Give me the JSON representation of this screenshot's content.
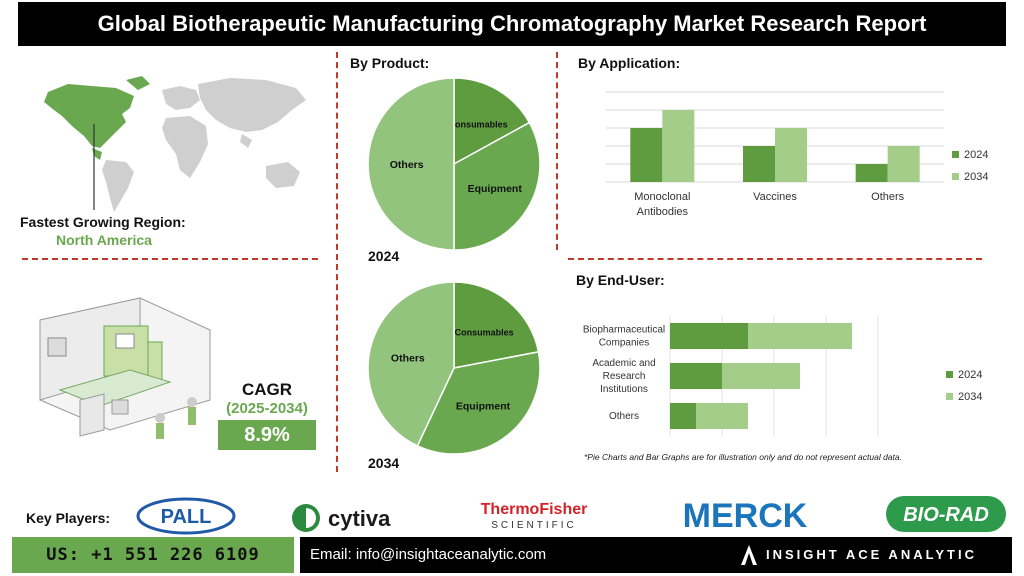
{
  "header": {
    "title": "Global Biotherapeutic Manufacturing Chromatography Market Research Report"
  },
  "region": {
    "label": "Fastest Growing Region:",
    "value": "North America"
  },
  "cagr": {
    "label": "CAGR",
    "period": "(2025-2034)",
    "value": "8.9%"
  },
  "colors": {
    "dark_green": "#5f9b3f",
    "light_green": "#a5cd8a",
    "mid_green": "#93c47d",
    "accent_green": "#6aa84f",
    "divider_red": "#c0392b"
  },
  "chart_data": [
    {
      "type": "pie",
      "title": "By Product:",
      "year_label": "2024",
      "slices": [
        {
          "label": "Consumables",
          "value": 17
        },
        {
          "label": "Equipment",
          "value": 33
        },
        {
          "label": "Others",
          "value": 50
        }
      ]
    },
    {
      "type": "pie",
      "year_label": "2034",
      "slices": [
        {
          "label": "Consumables",
          "value": 22
        },
        {
          "label": "Equipment",
          "value": 35
        },
        {
          "label": "Others",
          "value": 43
        }
      ]
    },
    {
      "type": "bar",
      "orientation": "vertical",
      "title": "By Application:",
      "categories": [
        "Monoclonal Antibodies",
        "Vaccines",
        "Others"
      ],
      "series": [
        {
          "name": "2024",
          "values": [
            60,
            40,
            20
          ]
        },
        {
          "name": "2034",
          "values": [
            80,
            60,
            40
          ]
        }
      ],
      "ylim": [
        0,
        100
      ],
      "grid": true,
      "legend": "right"
    },
    {
      "type": "bar",
      "orientation": "horizontal",
      "stacked": true,
      "title": "By End-User:",
      "categories": [
        "Biopharmaceutical Companies",
        "Academic and Research Institutions",
        "Others"
      ],
      "series": [
        {
          "name": "2024",
          "values": [
            30,
            20,
            10
          ]
        },
        {
          "name": "2034",
          "values": [
            40,
            30,
            20
          ]
        }
      ],
      "xlim": [
        0,
        80
      ],
      "grid": true,
      "legend": "right"
    }
  ],
  "note": "*Pie Charts and Bar Graphs are for illustration only and do not represent actual data.",
  "key_players": {
    "label": "Key Players:",
    "logos": [
      "PALL",
      "cytiva",
      "ThermoFisher",
      "SCIENTIFIC",
      "MERCK",
      "BIO-RAD"
    ]
  },
  "footer": {
    "phone": "US: +1 551 226 6109",
    "email": "Email: info@insightaceanalytic.com",
    "brand": "INSIGHT ACE ANALYTIC"
  }
}
